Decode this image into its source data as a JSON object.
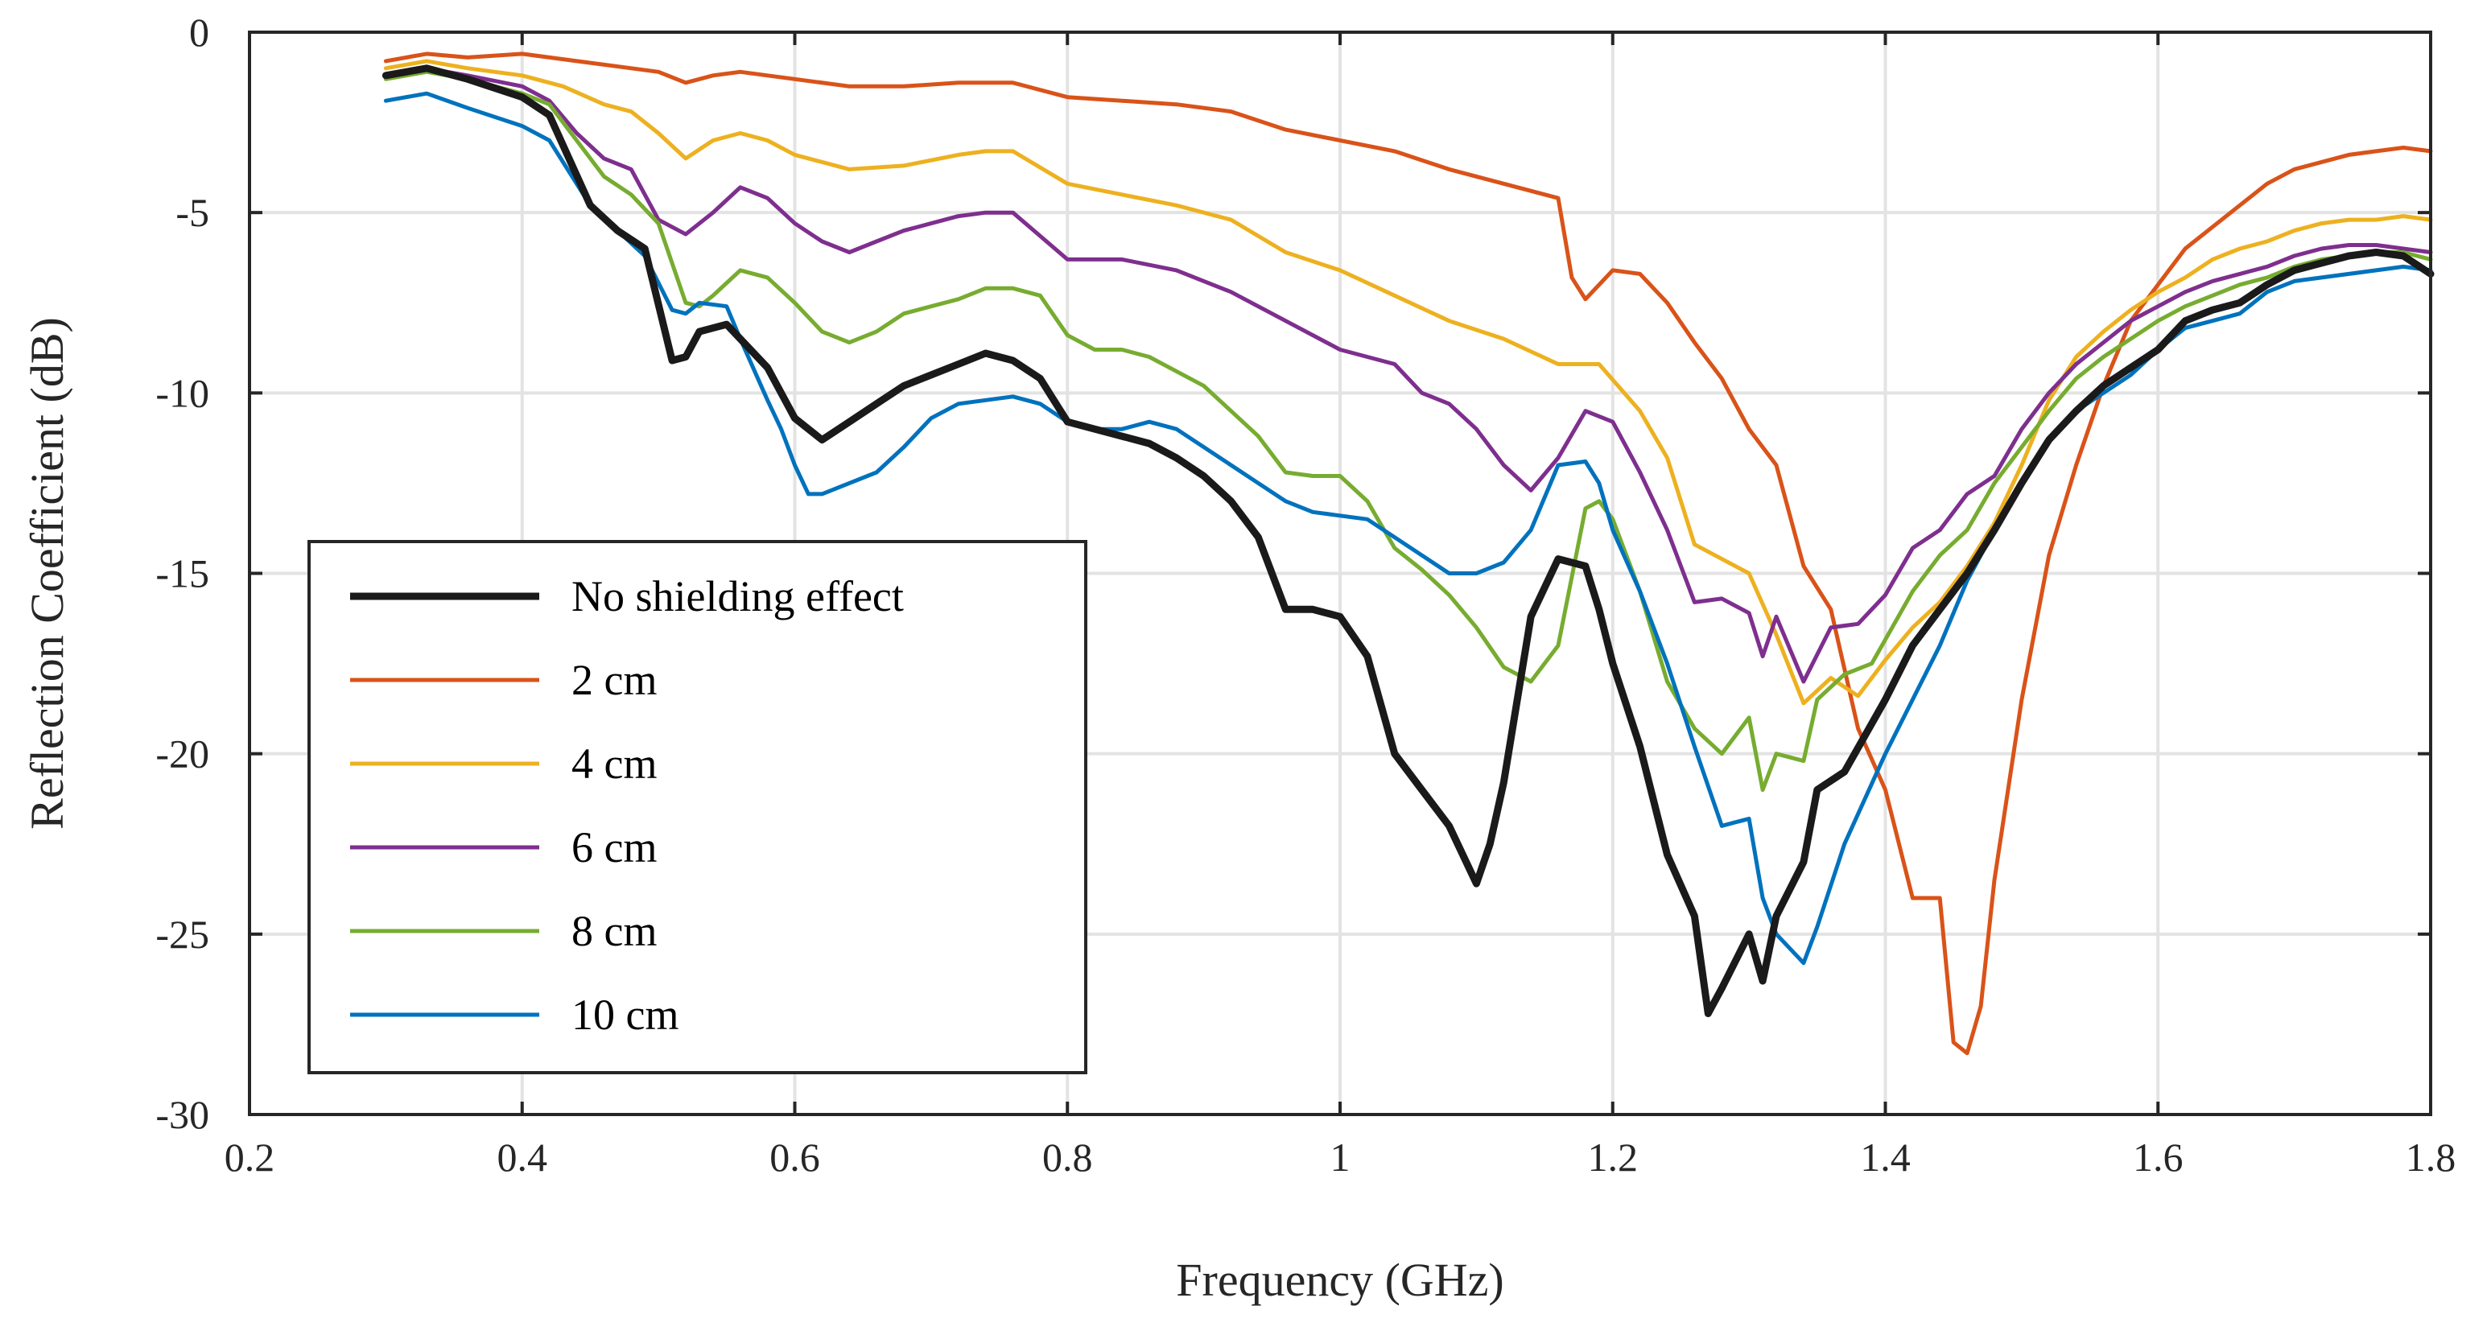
{
  "chart_data": {
    "type": "line",
    "title": "",
    "xlabel": "Frequency (GHz)",
    "ylabel": "Reflection Coefficient (dB)",
    "xlim": [
      0.2,
      1.8
    ],
    "ylim": [
      -30,
      0
    ],
    "xticks": [
      0.2,
      0.4,
      0.6,
      0.8,
      1.0,
      1.2,
      1.4,
      1.6,
      1.8
    ],
    "xtick_labels": [
      "0.2",
      "0.4",
      "0.6",
      "0.8",
      "1",
      "1.2",
      "1.4",
      "1.6",
      "1.8"
    ],
    "yticks": [
      0,
      -5,
      -10,
      -15,
      -20,
      -25,
      -30
    ],
    "ytick_labels": [
      "0",
      "-5",
      "-10",
      "-15",
      "-20",
      "-25",
      "-30"
    ],
    "grid": true,
    "legend_position": "lower-left",
    "series": [
      {
        "name": "No shielding effect",
        "color": "#1a1a1a",
        "width": 9,
        "x": [
          0.3,
          0.33,
          0.36,
          0.4,
          0.42,
          0.45,
          0.47,
          0.49,
          0.51,
          0.52,
          0.53,
          0.55,
          0.56,
          0.58,
          0.6,
          0.62,
          0.64,
          0.66,
          0.68,
          0.7,
          0.72,
          0.74,
          0.76,
          0.78,
          0.8,
          0.82,
          0.84,
          0.86,
          0.88,
          0.9,
          0.92,
          0.94,
          0.96,
          0.98,
          1.0,
          1.02,
          1.04,
          1.06,
          1.08,
          1.1,
          1.11,
          1.12,
          1.14,
          1.16,
          1.18,
          1.19,
          1.2,
          1.22,
          1.24,
          1.26,
          1.27,
          1.28,
          1.3,
          1.31,
          1.32,
          1.34,
          1.35,
          1.37,
          1.4,
          1.42,
          1.44,
          1.46,
          1.48,
          1.5,
          1.52,
          1.54,
          1.56,
          1.58,
          1.6,
          1.62,
          1.64,
          1.66,
          1.68,
          1.7,
          1.72,
          1.74,
          1.76,
          1.78,
          1.8
        ],
        "y": [
          -1.2,
          -1.0,
          -1.3,
          -1.8,
          -2.3,
          -4.8,
          -5.5,
          -6.0,
          -9.1,
          -9.0,
          -8.3,
          -8.1,
          -8.5,
          -9.3,
          -10.7,
          -11.3,
          -10.8,
          -10.3,
          -9.8,
          -9.5,
          -9.2,
          -8.9,
          -9.1,
          -9.6,
          -10.8,
          -11.0,
          -11.2,
          -11.4,
          -11.8,
          -12.3,
          -13.0,
          -14.0,
          -16.0,
          -16.0,
          -16.2,
          -17.3,
          -20.0,
          -21.0,
          -22.0,
          -23.6,
          -22.5,
          -20.8,
          -16.2,
          -14.6,
          -14.8,
          -16.0,
          -17.5,
          -19.8,
          -22.8,
          -24.5,
          -27.2,
          -26.5,
          -25.0,
          -26.3,
          -24.5,
          -23.0,
          -21.0,
          -20.5,
          -18.5,
          -17.0,
          -16.0,
          -15.0,
          -13.8,
          -12.5,
          -11.3,
          -10.5,
          -9.8,
          -9.3,
          -8.8,
          -8.0,
          -7.7,
          -7.5,
          -7.0,
          -6.6,
          -6.4,
          -6.2,
          -6.1,
          -6.2,
          -6.7
        ]
      },
      {
        "name": "2 cm",
        "color": "#d95319",
        "width": 5,
        "x": [
          0.3,
          0.33,
          0.36,
          0.4,
          0.44,
          0.48,
          0.5,
          0.52,
          0.54,
          0.56,
          0.6,
          0.64,
          0.68,
          0.72,
          0.76,
          0.8,
          0.84,
          0.88,
          0.92,
          0.96,
          1.0,
          1.04,
          1.08,
          1.12,
          1.16,
          1.17,
          1.18,
          1.2,
          1.22,
          1.24,
          1.26,
          1.28,
          1.3,
          1.32,
          1.34,
          1.36,
          1.38,
          1.4,
          1.42,
          1.44,
          1.45,
          1.46,
          1.47,
          1.48,
          1.5,
          1.52,
          1.54,
          1.56,
          1.58,
          1.6,
          1.62,
          1.64,
          1.66,
          1.68,
          1.7,
          1.72,
          1.74,
          1.76,
          1.78,
          1.8
        ],
        "y": [
          -0.8,
          -0.6,
          -0.7,
          -0.6,
          -0.8,
          -1.0,
          -1.1,
          -1.4,
          -1.2,
          -1.1,
          -1.3,
          -1.5,
          -1.5,
          -1.4,
          -1.4,
          -1.8,
          -1.9,
          -2.0,
          -2.2,
          -2.7,
          -3.0,
          -3.3,
          -3.8,
          -4.2,
          -4.6,
          -6.8,
          -7.4,
          -6.6,
          -6.7,
          -7.5,
          -8.6,
          -9.6,
          -11.0,
          -12.0,
          -14.8,
          -16.0,
          -19.3,
          -21.0,
          -24.0,
          -24.0,
          -28.0,
          -28.3,
          -27.0,
          -23.5,
          -18.5,
          -14.5,
          -12.0,
          -9.8,
          -8.0,
          -7.0,
          -6.0,
          -5.4,
          -4.8,
          -4.2,
          -3.8,
          -3.6,
          -3.4,
          -3.3,
          -3.2,
          -3.3
        ]
      },
      {
        "name": "4 cm",
        "color": "#edb120",
        "width": 5,
        "x": [
          0.3,
          0.33,
          0.36,
          0.4,
          0.43,
          0.46,
          0.48,
          0.5,
          0.52,
          0.54,
          0.56,
          0.58,
          0.6,
          0.64,
          0.68,
          0.72,
          0.74,
          0.76,
          0.8,
          0.84,
          0.88,
          0.92,
          0.96,
          1.0,
          1.04,
          1.08,
          1.12,
          1.16,
          1.19,
          1.22,
          1.24,
          1.26,
          1.28,
          1.3,
          1.32,
          1.34,
          1.36,
          1.38,
          1.4,
          1.42,
          1.44,
          1.46,
          1.48,
          1.5,
          1.52,
          1.54,
          1.56,
          1.58,
          1.6,
          1.62,
          1.64,
          1.66,
          1.68,
          1.7,
          1.72,
          1.74,
          1.76,
          1.78,
          1.8
        ],
        "y": [
          -1.0,
          -0.8,
          -1.0,
          -1.2,
          -1.5,
          -2.0,
          -2.2,
          -2.8,
          -3.5,
          -3.0,
          -2.8,
          -3.0,
          -3.4,
          -3.8,
          -3.7,
          -3.4,
          -3.3,
          -3.3,
          -4.2,
          -4.5,
          -4.8,
          -5.2,
          -6.1,
          -6.6,
          -7.3,
          -8.0,
          -8.5,
          -9.2,
          -9.2,
          -10.5,
          -11.8,
          -14.2,
          -14.6,
          -15.0,
          -16.7,
          -18.6,
          -17.9,
          -18.4,
          -17.4,
          -16.5,
          -15.8,
          -14.8,
          -13.6,
          -12.0,
          -10.2,
          -9.0,
          -8.3,
          -7.7,
          -7.2,
          -6.8,
          -6.3,
          -6.0,
          -5.8,
          -5.5,
          -5.3,
          -5.2,
          -5.2,
          -5.1,
          -5.2
        ]
      },
      {
        "name": "6 cm",
        "color": "#7e2f8e",
        "width": 5,
        "x": [
          0.3,
          0.33,
          0.36,
          0.4,
          0.42,
          0.44,
          0.46,
          0.48,
          0.5,
          0.52,
          0.54,
          0.56,
          0.58,
          0.6,
          0.62,
          0.64,
          0.66,
          0.68,
          0.7,
          0.72,
          0.74,
          0.76,
          0.8,
          0.84,
          0.88,
          0.92,
          0.96,
          1.0,
          1.04,
          1.06,
          1.08,
          1.1,
          1.12,
          1.14,
          1.16,
          1.18,
          1.2,
          1.22,
          1.24,
          1.26,
          1.28,
          1.3,
          1.31,
          1.32,
          1.34,
          1.36,
          1.38,
          1.4,
          1.42,
          1.44,
          1.46,
          1.48,
          1.5,
          1.52,
          1.54,
          1.56,
          1.58,
          1.6,
          1.62,
          1.64,
          1.66,
          1.68,
          1.7,
          1.72,
          1.74,
          1.76,
          1.78,
          1.8
        ],
        "y": [
          -1.2,
          -1.0,
          -1.2,
          -1.5,
          -1.9,
          -2.8,
          -3.5,
          -3.8,
          -5.2,
          -5.6,
          -5.0,
          -4.3,
          -4.6,
          -5.3,
          -5.8,
          -6.1,
          -5.8,
          -5.5,
          -5.3,
          -5.1,
          -5.0,
          -5.0,
          -6.3,
          -6.3,
          -6.6,
          -7.2,
          -8.0,
          -8.8,
          -9.2,
          -10.0,
          -10.3,
          -11.0,
          -12.0,
          -12.7,
          -11.8,
          -10.5,
          -10.8,
          -12.2,
          -13.8,
          -15.8,
          -15.7,
          -16.1,
          -17.3,
          -16.2,
          -18.0,
          -16.5,
          -16.4,
          -15.6,
          -14.3,
          -13.8,
          -12.8,
          -12.3,
          -11.0,
          -10.0,
          -9.2,
          -8.6,
          -8.0,
          -7.6,
          -7.2,
          -6.9,
          -6.7,
          -6.5,
          -6.2,
          -6.0,
          -5.9,
          -5.9,
          -6.0,
          -6.1
        ]
      },
      {
        "name": "8 cm",
        "color": "#77ac30",
        "width": 5,
        "x": [
          0.3,
          0.33,
          0.36,
          0.4,
          0.42,
          0.44,
          0.46,
          0.48,
          0.5,
          0.52,
          0.53,
          0.54,
          0.56,
          0.58,
          0.6,
          0.62,
          0.64,
          0.66,
          0.68,
          0.7,
          0.72,
          0.74,
          0.76,
          0.78,
          0.8,
          0.82,
          0.84,
          0.86,
          0.88,
          0.9,
          0.92,
          0.94,
          0.96,
          0.98,
          1.0,
          1.02,
          1.04,
          1.06,
          1.08,
          1.1,
          1.12,
          1.14,
          1.16,
          1.18,
          1.19,
          1.2,
          1.22,
          1.24,
          1.26,
          1.28,
          1.3,
          1.31,
          1.32,
          1.34,
          1.35,
          1.37,
          1.39,
          1.42,
          1.44,
          1.46,
          1.48,
          1.5,
          1.52,
          1.54,
          1.56,
          1.58,
          1.6,
          1.62,
          1.64,
          1.66,
          1.68,
          1.7,
          1.72,
          1.74,
          1.76,
          1.78,
          1.8
        ],
        "y": [
          -1.3,
          -1.1,
          -1.3,
          -1.7,
          -2.0,
          -3.0,
          -4.0,
          -4.5,
          -5.3,
          -7.5,
          -7.6,
          -7.3,
          -6.6,
          -6.8,
          -7.5,
          -8.3,
          -8.6,
          -8.3,
          -7.8,
          -7.6,
          -7.4,
          -7.1,
          -7.1,
          -7.3,
          -8.4,
          -8.8,
          -8.8,
          -9.0,
          -9.4,
          -9.8,
          -10.5,
          -11.2,
          -12.2,
          -12.3,
          -12.3,
          -13.0,
          -14.3,
          -14.9,
          -15.6,
          -16.5,
          -17.6,
          -18.0,
          -17.0,
          -13.2,
          -13.0,
          -13.5,
          -15.5,
          -18.0,
          -19.3,
          -20.0,
          -19.0,
          -21.0,
          -20.0,
          -20.2,
          -18.5,
          -17.8,
          -17.5,
          -15.5,
          -14.5,
          -13.8,
          -12.5,
          -11.5,
          -10.5,
          -9.6,
          -9.0,
          -8.5,
          -8.0,
          -7.6,
          -7.3,
          -7.0,
          -6.8,
          -6.5,
          -6.3,
          -6.2,
          -6.1,
          -6.1,
          -6.3
        ]
      },
      {
        "name": "10 cm",
        "color": "#0072bd",
        "width": 5,
        "x": [
          0.3,
          0.33,
          0.36,
          0.4,
          0.42,
          0.45,
          0.47,
          0.49,
          0.51,
          0.52,
          0.53,
          0.55,
          0.56,
          0.58,
          0.59,
          0.6,
          0.61,
          0.62,
          0.64,
          0.66,
          0.68,
          0.7,
          0.72,
          0.74,
          0.76,
          0.78,
          0.8,
          0.82,
          0.84,
          0.86,
          0.88,
          0.9,
          0.92,
          0.94,
          0.96,
          0.98,
          1.0,
          1.02,
          1.04,
          1.06,
          1.08,
          1.1,
          1.12,
          1.14,
          1.16,
          1.18,
          1.19,
          1.2,
          1.22,
          1.24,
          1.26,
          1.28,
          1.3,
          1.31,
          1.32,
          1.34,
          1.35,
          1.37,
          1.4,
          1.42,
          1.44,
          1.46,
          1.48,
          1.5,
          1.52,
          1.54,
          1.56,
          1.58,
          1.6,
          1.62,
          1.64,
          1.66,
          1.68,
          1.7,
          1.72,
          1.74,
          1.76,
          1.78,
          1.8
        ],
        "y": [
          -1.9,
          -1.7,
          -2.1,
          -2.6,
          -3.0,
          -4.8,
          -5.5,
          -6.2,
          -7.7,
          -7.8,
          -7.5,
          -7.6,
          -8.5,
          -10.2,
          -11.0,
          -12.0,
          -12.8,
          -12.8,
          -12.5,
          -12.2,
          -11.5,
          -10.7,
          -10.3,
          -10.2,
          -10.1,
          -10.3,
          -10.8,
          -11.0,
          -11.0,
          -10.8,
          -11.0,
          -11.5,
          -12.0,
          -12.5,
          -13.0,
          -13.3,
          -13.4,
          -13.5,
          -14.0,
          -14.5,
          -15.0,
          -15.0,
          -14.7,
          -13.8,
          -12.0,
          -11.9,
          -12.5,
          -13.8,
          -15.5,
          -17.5,
          -19.8,
          -22.0,
          -21.8,
          -24.0,
          -25.0,
          -25.8,
          -24.8,
          -22.5,
          -20.0,
          -18.5,
          -17.0,
          -15.2,
          -13.8,
          -12.5,
          -11.3,
          -10.5,
          -10.0,
          -9.5,
          -8.8,
          -8.2,
          -8.0,
          -7.8,
          -7.2,
          -6.9,
          -6.8,
          -6.7,
          -6.6,
          -6.5,
          -6.6
        ]
      }
    ]
  }
}
